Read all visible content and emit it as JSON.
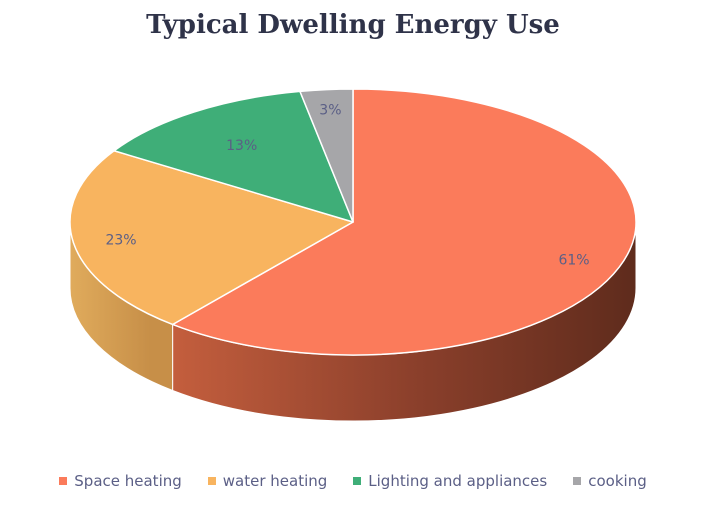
{
  "chart_data": {
    "type": "pie",
    "title": "Typical Dwelling Energy Use",
    "legend_position": "bottom",
    "slices": [
      {
        "label": "Space heating",
        "value": 61,
        "display": "61%",
        "color": "#fb7b5b",
        "side_color": "#b0533a"
      },
      {
        "label": "water heating",
        "value": 23,
        "display": "23%",
        "color": "#f8b45f",
        "side_color": "#d8a055"
      },
      {
        "label": "Lighting and appliances",
        "value": 13,
        "display": "13%",
        "color": "#3fae78",
        "side_color": "#2e8a5c"
      },
      {
        "label": "cooking",
        "value": 3,
        "display": "3%",
        "color": "#a6a6a9",
        "side_color": "#808084"
      }
    ]
  }
}
